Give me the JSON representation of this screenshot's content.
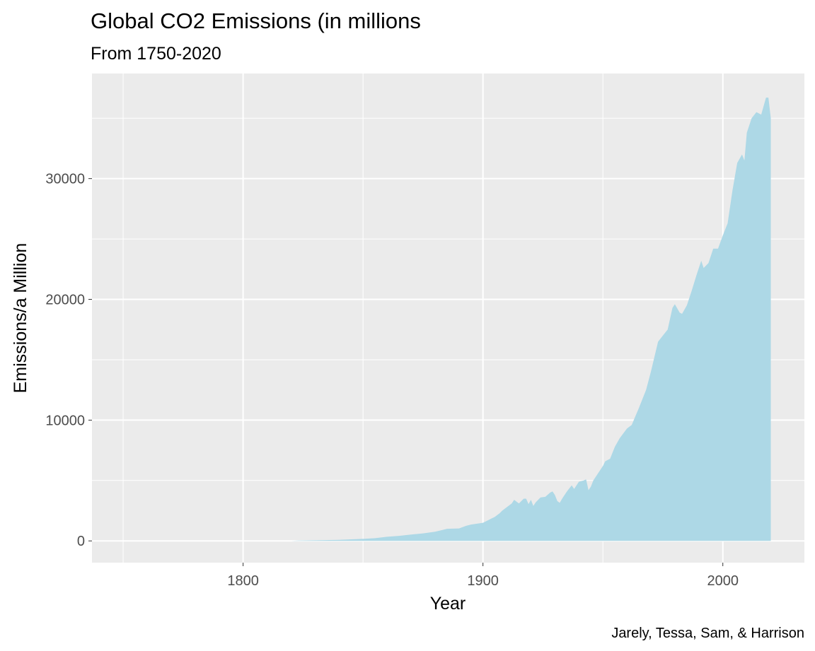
{
  "chart_data": {
    "type": "area",
    "title": "Global CO2 Emissions (in millions",
    "subtitle": "From 1750-2020",
    "xlabel": "Year",
    "ylabel": "Emissions/a Million",
    "caption": "Jarely, Tessa, Sam, & Harrison",
    "xlim": [
      1737,
      2034
    ],
    "ylim": [
      -1800,
      38700
    ],
    "x_ticks": [
      1800,
      1900,
      2000
    ],
    "x_minor_ticks": [
      1750,
      1850,
      1950
    ],
    "y_ticks": [
      0,
      10000,
      20000,
      30000
    ],
    "y_minor_ticks": [
      5000,
      15000,
      25000,
      35000
    ],
    "grid": true,
    "legend": "none",
    "fill_color": "#add8e6",
    "panel_color": "#ebebeb",
    "series": [
      {
        "x": [
          1750,
          1760,
          1770,
          1780,
          1790,
          1800,
          1810,
          1820,
          1823,
          1830,
          1840,
          1850,
          1855,
          1860,
          1865,
          1870,
          1875,
          1880,
          1883,
          1885,
          1890,
          1893,
          1895,
          1900,
          1903,
          1905,
          1907,
          1908,
          1910,
          1912,
          1913,
          1915,
          1917,
          1918,
          1919,
          1920,
          1921,
          1922,
          1924,
          1926,
          1928,
          1929,
          1930,
          1931,
          1932,
          1933,
          1935,
          1937,
          1938,
          1940,
          1942,
          1943,
          1944,
          1945,
          1946,
          1947,
          1950,
          1951,
          1953,
          1955,
          1957,
          1960,
          1962,
          1965,
          1968,
          1970,
          1973,
          1975,
          1977,
          1979,
          1980,
          1982,
          1983,
          1985,
          1987,
          1989,
          1990,
          1991,
          1992,
          1994,
          1996,
          1998,
          2000,
          2002,
          2004,
          2006,
          2008,
          2009,
          2010,
          2012,
          2014,
          2016,
          2018,
          2019,
          2020
        ],
        "values": [
          0,
          0,
          0,
          0,
          0,
          0,
          0,
          0,
          30,
          50,
          90,
          170,
          230,
          340,
          420,
          530,
          620,
          760,
          900,
          1000,
          1030,
          1250,
          1350,
          1500,
          1800,
          2000,
          2300,
          2500,
          2800,
          3100,
          3400,
          3100,
          3500,
          3500,
          3050,
          3400,
          2900,
          3200,
          3600,
          3650,
          4000,
          4100,
          3800,
          3300,
          3150,
          3500,
          4100,
          4600,
          4300,
          4900,
          5000,
          5100,
          4200,
          4500,
          5000,
          5300,
          6200,
          6600,
          6800,
          7800,
          8500,
          9300,
          9600,
          11000,
          12500,
          14000,
          16500,
          17000,
          17500,
          19300,
          19600,
          18900,
          18800,
          19500,
          20700,
          22000,
          22600,
          23200,
          22600,
          23000,
          24200,
          24200,
          25300,
          26300,
          29000,
          31300,
          32000,
          31500,
          33800,
          35000,
          35500,
          35300,
          36700,
          36700,
          35000
        ]
      }
    ]
  }
}
